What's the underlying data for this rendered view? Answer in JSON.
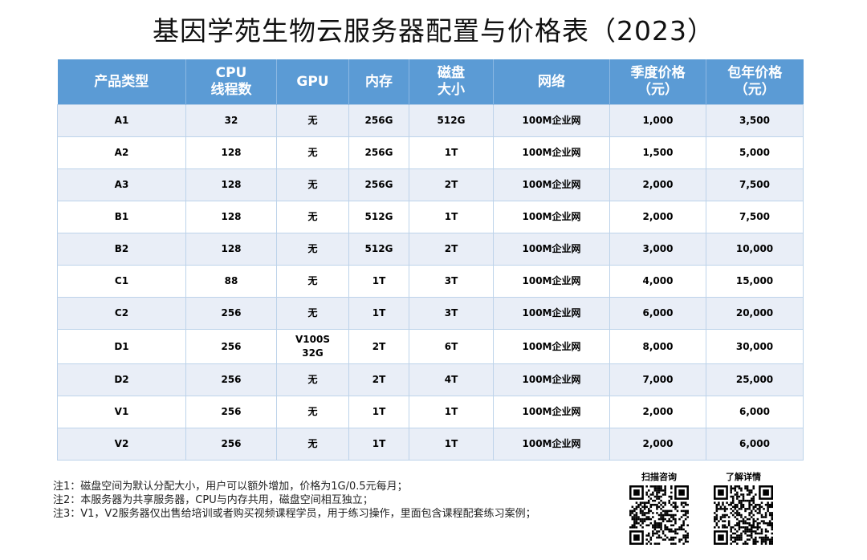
{
  "title": "基因学苑生物云服务器配置与价格表（2023）",
  "table": {
    "headers": [
      "产品类型",
      "CPU\n线程数",
      "GPU",
      "内存",
      "磁盘\n大小",
      "网络",
      "季度价格\n（元）",
      "包年价格\n（元）"
    ],
    "rows": [
      [
        "A1",
        "32",
        "无",
        "256G",
        "512G",
        "100M企业网",
        "1,000",
        "3,500"
      ],
      [
        "A2",
        "128",
        "无",
        "256G",
        "1T",
        "100M企业网",
        "1,500",
        "5,000"
      ],
      [
        "A3",
        "128",
        "无",
        "256G",
        "2T",
        "100M企业网",
        "2,000",
        "7,500"
      ],
      [
        "B1",
        "128",
        "无",
        "512G",
        "1T",
        "100M企业网",
        "2,000",
        "7,500"
      ],
      [
        "B2",
        "128",
        "无",
        "512G",
        "2T",
        "100M企业网",
        "3,000",
        "10,000"
      ],
      [
        "C1",
        "88",
        "无",
        "1T",
        "3T",
        "100M企业网",
        "4,000",
        "15,000"
      ],
      [
        "C2",
        "256",
        "无",
        "1T",
        "3T",
        "100M企业网",
        "6,000",
        "20,000"
      ],
      [
        "D1",
        "256",
        "V100S\n32G",
        "2T",
        "6T",
        "100M企业网",
        "8,000",
        "30,000"
      ],
      [
        "D2",
        "256",
        "无",
        "2T",
        "4T",
        "100M企业网",
        "7,000",
        "25,000"
      ],
      [
        "V1",
        "256",
        "无",
        "1T",
        "1T",
        "100M企业网",
        "2,000",
        "6,000"
      ],
      [
        "V2",
        "256",
        "无",
        "1T",
        "1T",
        "100M企业网",
        "2,000",
        "6,000"
      ]
    ]
  },
  "notes": [
    "注1：磁盘空间为默认分配大小，用户可以额外增加，价格为1G/0.5元每月；",
    "注2：本服务器为共享服务器，CPU与内存共用，磁盘空间相互独立；",
    "注3：V1，V2服务器仅出售给培训或者购买视频课程学员，用于练习操作，里面包含课程配套练习案例；"
  ],
  "qr": [
    {
      "label": "扫描咨询",
      "icon": "qr-code-icon"
    },
    {
      "label": "了解详情",
      "icon": "qr-code-icon"
    }
  ],
  "colors": {
    "header_bg": "#5b9bd5",
    "header_text": "#ffffff",
    "row_alt_bg": "#e9eef7",
    "row_bg": "#ffffff",
    "border": "#bdd3ea"
  }
}
